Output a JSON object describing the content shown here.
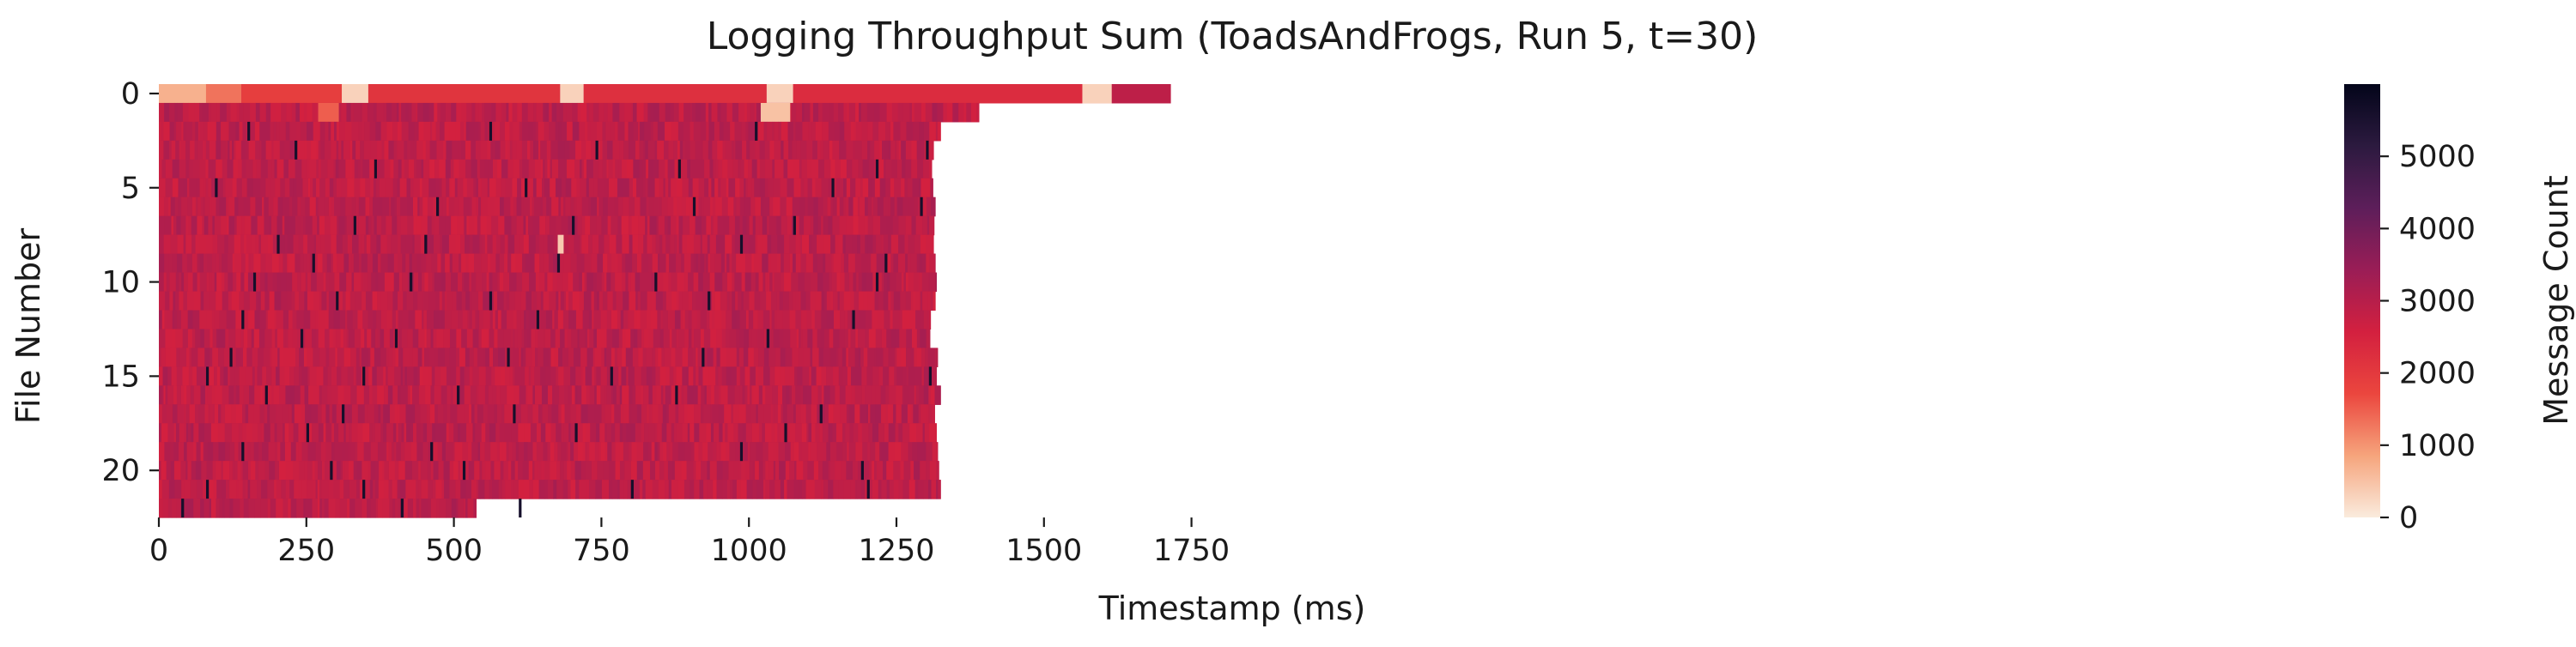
{
  "chart_data": {
    "type": "heatmap",
    "title": "Logging Throughput Sum (ToadsAndFrogs, Run 5, t=30)",
    "xlabel": "Timestamp (ms)",
    "ylabel": "File Number",
    "colorbar_label": "Message Count",
    "xlim": [
      0,
      1800
    ],
    "ylim": [
      0,
      23
    ],
    "x_ticks": [
      0,
      250,
      500,
      750,
      1000,
      1250,
      1500,
      1750
    ],
    "y_ticks": [
      0,
      5,
      10,
      15,
      20
    ],
    "color_range": [
      0,
      6000
    ],
    "colorbar_ticks": [
      0,
      1000,
      2000,
      3000,
      4000,
      5000
    ],
    "colormap": [
      "#faebdd",
      "#f6a47c",
      "#eb463e",
      "#d3203f",
      "#9a1d56",
      "#5d1e5a",
      "#2c1a3f",
      "#03051a"
    ],
    "typical_value": 2900,
    "rows": [
      {
        "file": 0,
        "end_ms": 1715,
        "segments": [
          {
            "from": 0,
            "to": 80,
            "value": 700
          },
          {
            "from": 80,
            "to": 140,
            "value": 1300
          },
          {
            "from": 140,
            "to": 310,
            "value": 1900
          },
          {
            "from": 310,
            "to": 355,
            "value": 300
          },
          {
            "from": 355,
            "to": 680,
            "value": 2100
          },
          {
            "from": 680,
            "to": 720,
            "value": 300
          },
          {
            "from": 720,
            "to": 1030,
            "value": 2200
          },
          {
            "from": 1030,
            "to": 1075,
            "value": 300
          },
          {
            "from": 1075,
            "to": 1565,
            "value": 2300
          },
          {
            "from": 1565,
            "to": 1615,
            "value": 300
          },
          {
            "from": 1615,
            "to": 1715,
            "value": 2900
          }
        ]
      },
      {
        "file": 1,
        "end_ms": 1390,
        "segments": [
          {
            "from": 270,
            "to": 305,
            "value": 1500
          },
          {
            "from": 1020,
            "to": 1070,
            "value": 500
          }
        ]
      },
      {
        "file": 2,
        "end_ms": 1325,
        "segments": []
      },
      {
        "file": 3,
        "end_ms": 1313,
        "segments": []
      },
      {
        "file": 4,
        "end_ms": 1310,
        "segments": []
      },
      {
        "file": 5,
        "end_ms": 1312,
        "segments": []
      },
      {
        "file": 6,
        "end_ms": 1316,
        "segments": []
      },
      {
        "file": 7,
        "end_ms": 1314,
        "segments": []
      },
      {
        "file": 8,
        "end_ms": 1313,
        "segments": [
          {
            "from": 676,
            "to": 686,
            "value": 400
          }
        ]
      },
      {
        "file": 9,
        "end_ms": 1316,
        "segments": []
      },
      {
        "file": 10,
        "end_ms": 1318,
        "segments": []
      },
      {
        "file": 11,
        "end_ms": 1316,
        "segments": []
      },
      {
        "file": 12,
        "end_ms": 1308,
        "segments": []
      },
      {
        "file": 13,
        "end_ms": 1307,
        "segments": []
      },
      {
        "file": 14,
        "end_ms": 1320,
        "segments": []
      },
      {
        "file": 15,
        "end_ms": 1318,
        "segments": []
      },
      {
        "file": 16,
        "end_ms": 1325,
        "segments": []
      },
      {
        "file": 17,
        "end_ms": 1315,
        "segments": []
      },
      {
        "file": 18,
        "end_ms": 1318,
        "segments": []
      },
      {
        "file": 19,
        "end_ms": 1320,
        "segments": []
      },
      {
        "file": 20,
        "end_ms": 1322,
        "segments": []
      },
      {
        "file": 21,
        "end_ms": 1325,
        "segments": []
      },
      {
        "file": 22,
        "end_ms": 538,
        "segments": []
      }
    ],
    "dark_spikes": [
      {
        "file": 2,
        "ms": [
          150,
          560,
          1010
        ]
      },
      {
        "file": 3,
        "ms": [
          230,
          740,
          1300
        ]
      },
      {
        "file": 4,
        "ms": [
          365,
          880,
          1215
        ]
      },
      {
        "file": 5,
        "ms": [
          95,
          620,
          1140
        ]
      },
      {
        "file": 6,
        "ms": [
          470,
          905,
          1290
        ]
      },
      {
        "file": 7,
        "ms": [
          330,
          700,
          1075
        ]
      },
      {
        "file": 8,
        "ms": [
          200,
          450,
          985
        ]
      },
      {
        "file": 9,
        "ms": [
          260,
          675,
          1230
        ]
      },
      {
        "file": 10,
        "ms": [
          160,
          425,
          840,
          1215
        ]
      },
      {
        "file": 11,
        "ms": [
          300,
          560,
          930
        ]
      },
      {
        "file": 12,
        "ms": [
          140,
          640,
          1175
        ]
      },
      {
        "file": 13,
        "ms": [
          240,
          400,
          1030
        ]
      },
      {
        "file": 14,
        "ms": [
          120,
          590,
          920
        ]
      },
      {
        "file": 15,
        "ms": [
          80,
          345,
          765,
          1305
        ]
      },
      {
        "file": 16,
        "ms": [
          180,
          505,
          875
        ]
      },
      {
        "file": 17,
        "ms": [
          310,
          600,
          1120
        ]
      },
      {
        "file": 18,
        "ms": [
          250,
          705,
          1060
        ]
      },
      {
        "file": 19,
        "ms": [
          140,
          460,
          985
        ]
      },
      {
        "file": 20,
        "ms": [
          290,
          515,
          1190
        ]
      },
      {
        "file": 21,
        "ms": [
          80,
          345,
          800,
          1200
        ]
      },
      {
        "file": 22,
        "ms": [
          38,
          410,
          610
        ]
      }
    ]
  }
}
